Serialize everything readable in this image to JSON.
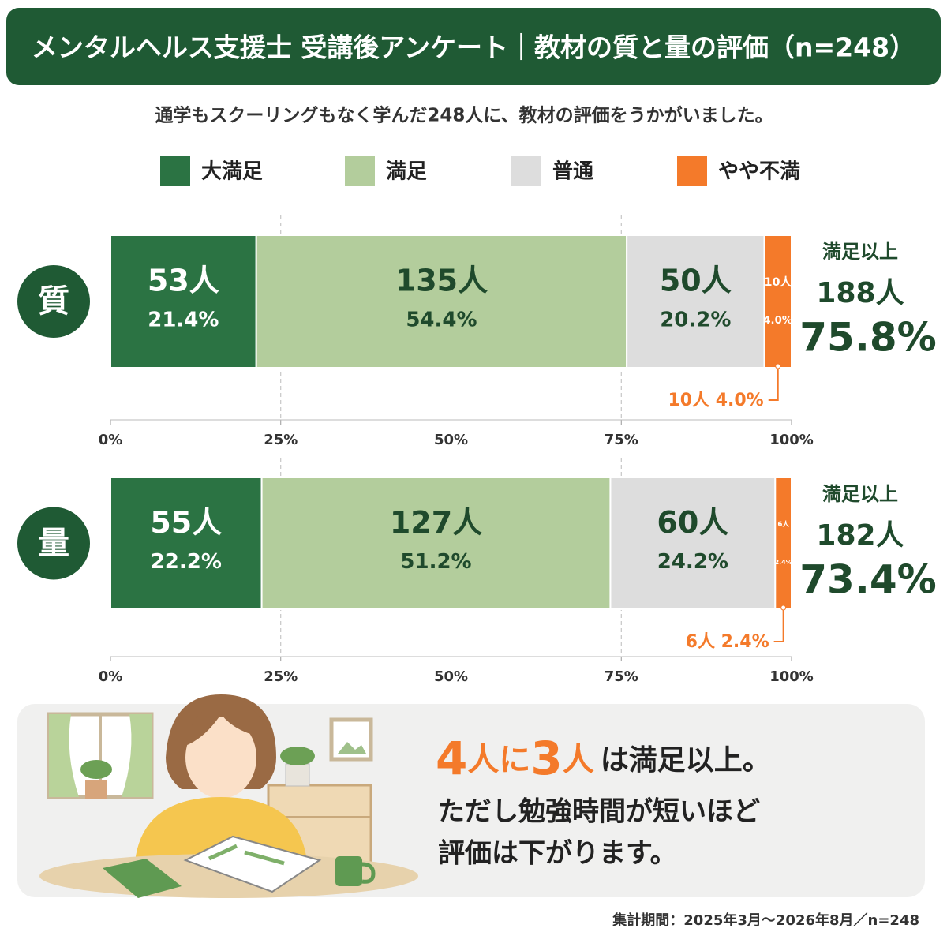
{
  "chart_data": {
    "type": "stacked_bar_horizontal",
    "title": "メンタルヘルス支援士 受講後アンケート｜教材の質と量の評価（n=248）",
    "subtitle": "通学もスクーリングもなく学んだ248人に、教材の評価をうかがいました。",
    "categories": [
      "質",
      "量"
    ],
    "series": [
      {
        "name": "大満足",
        "color": "#2b7343",
        "values": [
          21.4,
          22.2
        ],
        "value_labels": [
          "21.4%",
          "22.2%"
        ],
        "count_labels": [
          "53人",
          "55人"
        ]
      },
      {
        "name": "満足",
        "color": "#b3cd9c",
        "values": [
          54.4,
          51.2
        ],
        "value_labels": [
          "54.4%",
          "51.2%"
        ],
        "count_labels": [
          "135人",
          "127人"
        ]
      },
      {
        "name": "普通",
        "color": "#dddddd",
        "values": [
          20.2,
          24.2
        ],
        "value_labels": [
          "20.2%",
          "24.2%"
        ],
        "count_labels": [
          "50人",
          "60人"
        ]
      },
      {
        "name": "やや不満",
        "color": "#f47a2a",
        "values": [
          4.0,
          2.4
        ],
        "value_labels": [
          "4.0%",
          "2.4%"
        ],
        "count_labels": [
          "10人",
          "6人"
        ]
      }
    ],
    "callouts": [
      "10人 4.0%",
      "6人 2.4%"
    ],
    "summary": [
      {
        "title": "満足以上",
        "count": "188人",
        "percent": "75.8%"
      },
      {
        "title": "満足以上",
        "count": "182人",
        "percent": "73.4%"
      }
    ],
    "xlim": [
      0,
      100
    ],
    "xticks": [
      {
        "value": 0,
        "label": "0%"
      },
      {
        "value": 25,
        "label": "25%"
      },
      {
        "value": 50,
        "label": "50%"
      },
      {
        "value": 75,
        "label": "75%"
      },
      {
        "value": 100,
        "label": "100%"
      }
    ],
    "grid": true,
    "note": {
      "parts": [
        "4",
        "人に",
        "3",
        "人",
        "は満足以上。"
      ],
      "line2": "ただし勉強時間が短いほど",
      "line3": "評価は下がります。"
    },
    "footnote": "集計期間：2025年3月～2026年8月／n=248"
  }
}
